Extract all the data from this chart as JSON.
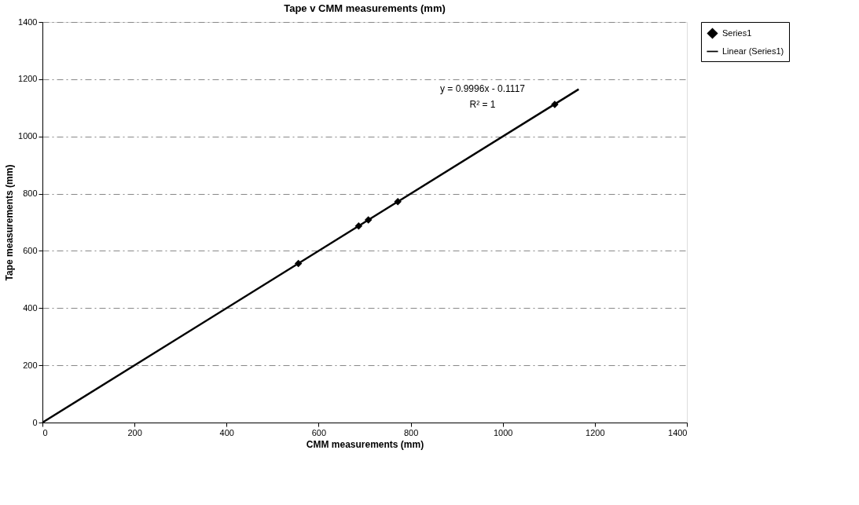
{
  "chart_data": {
    "type": "scatter",
    "title": "Tape v CMM measurements (mm)",
    "xlabel": "CMM measurements (mm)",
    "ylabel": "Tape measurements (mm)",
    "series": [
      {
        "name": "Series1",
        "type": "scatter",
        "color": "#000000",
        "marker": "diamond",
        "x": [
          556,
          687,
          708,
          772,
          1113
        ],
        "values": [
          556,
          687,
          708,
          772,
          1112
        ]
      },
      {
        "name": "Linear (Series1)",
        "type": "line",
        "color": "#000000",
        "line_style": "solid",
        "x": [
          0,
          1165
        ],
        "values": [
          0,
          1165
        ]
      }
    ],
    "annotations": [
      "y = 0.9996x - 0.1117",
      "R² = 1"
    ],
    "xlim": [
      0,
      1400
    ],
    "xticks": [
      0,
      200,
      400,
      600,
      800,
      1000,
      1200,
      1400
    ],
    "ylim": [
      0,
      1400
    ],
    "yticks": [
      0,
      200,
      400,
      600,
      800,
      1000,
      1200,
      1400
    ],
    "grid": "y",
    "legend": "right"
  }
}
